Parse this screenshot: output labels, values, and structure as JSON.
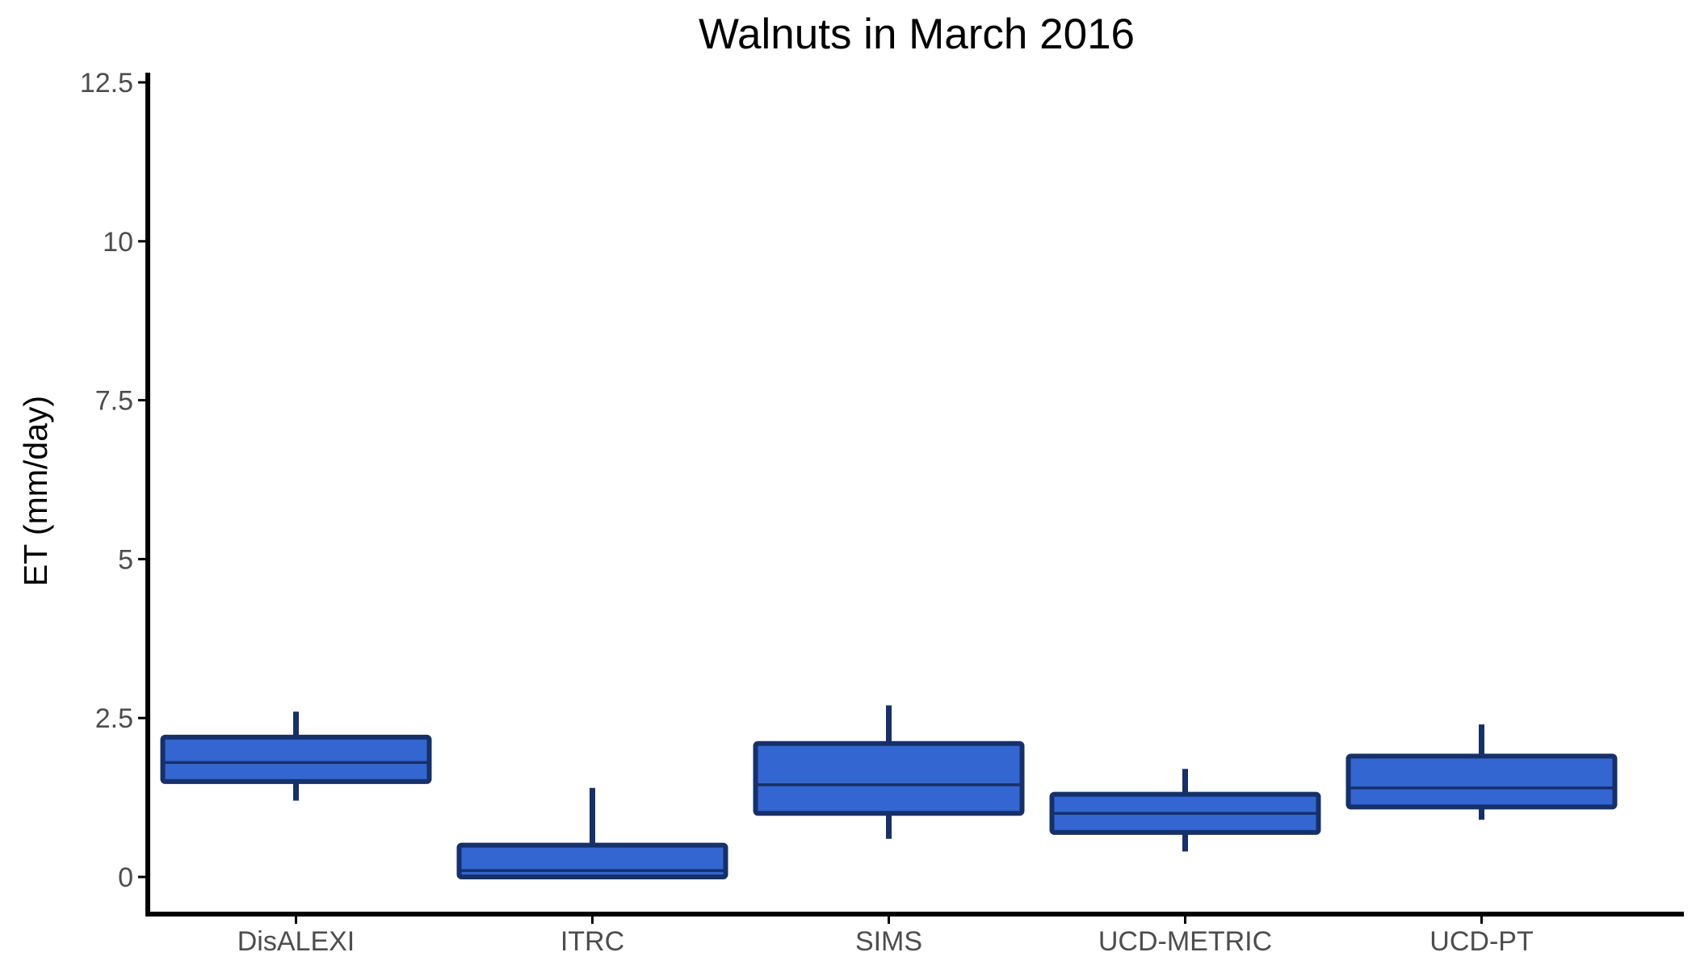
{
  "chart_data": {
    "type": "boxplot",
    "title": "Walnuts in March 2016",
    "xlabel": "",
    "ylabel": "ET (mm/day)",
    "ylim": [
      -0.55,
      12.6
    ],
    "yticks": [
      0,
      2.5,
      5,
      7.5,
      10,
      12.5
    ],
    "ytick_labels": [
      "0",
      "2.5",
      "5",
      "7.5",
      "10",
      "12.5"
    ],
    "grid": false,
    "legend": "none",
    "categories": [
      "DisALEXI",
      "ITRC",
      "SIMS",
      "UCD-METRIC",
      "UCD-PT"
    ],
    "boxes": [
      {
        "category": "DisALEXI",
        "whisker_low": 1.2,
        "q1": 1.5,
        "median": 1.8,
        "q3": 2.2,
        "whisker_high": 2.6
      },
      {
        "category": "ITRC",
        "whisker_low": 0.0,
        "q1": 0.0,
        "median": 0.1,
        "q3": 0.5,
        "whisker_high": 1.4
      },
      {
        "category": "SIMS",
        "whisker_low": 0.6,
        "q1": 1.0,
        "median": 1.45,
        "q3": 2.1,
        "whisker_high": 2.7
      },
      {
        "category": "UCD-METRIC",
        "whisker_low": 0.4,
        "q1": 0.7,
        "median": 1.0,
        "q3": 1.3,
        "whisker_high": 1.7
      },
      {
        "category": "UCD-PT",
        "whisker_low": 0.9,
        "q1": 1.1,
        "median": 1.4,
        "q3": 1.9,
        "whisker_high": 2.4
      }
    ],
    "colors": {
      "fill": "#3366d1",
      "outline": "#16306a",
      "axis": "#000000",
      "tick_text": "#4d4d4d"
    }
  }
}
